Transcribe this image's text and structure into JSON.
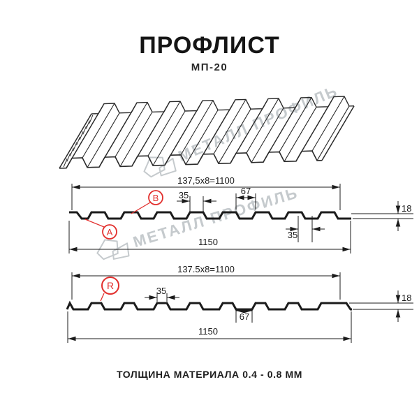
{
  "page": {
    "title": "ПРОФЛИСТ",
    "subtitle": "МП-20",
    "footer_note": "ТОЛЩИНА МАТЕРИАЛА 0.4 - 0.8 ММ"
  },
  "watermark": {
    "text": "МЕТАЛЛ ПРОФИЛЬ"
  },
  "colors": {
    "line": "#1b1b1b",
    "accent_red": "#e2302e",
    "watermark": "#c5cacd"
  },
  "section_top": {
    "dim_width_formula": "137,5x8=1100",
    "dim_total_width": "1150",
    "dim_rib_top": "35",
    "dim_rib_gap": "67",
    "dim_rib_bottom": "35",
    "dim_height": "18",
    "label_a": "А",
    "label_b": "В"
  },
  "section_bottom": {
    "dim_width_formula": "137.5x8=1100",
    "dim_total_width": "1150",
    "dim_rib_top": "35",
    "dim_rib_gap": "67",
    "dim_height": "18",
    "label_r": "R"
  }
}
